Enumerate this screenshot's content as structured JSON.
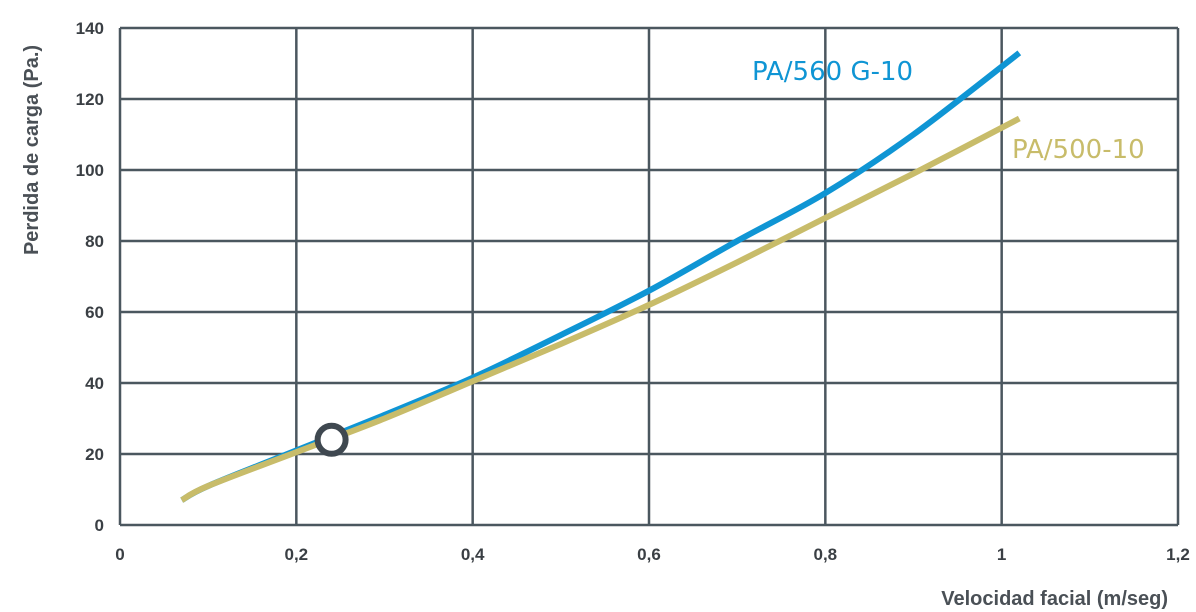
{
  "chart_data": {
    "type": "line",
    "title": "",
    "xlabel": "Velocidad facial (m/seg)",
    "ylabel": "Perdida de carga (Pa.)",
    "xlim": [
      0,
      1.2
    ],
    "ylim": [
      0,
      140
    ],
    "x_ticks": [
      0,
      0.2,
      0.4,
      0.6,
      0.8,
      1,
      1.2
    ],
    "x_tick_labels": [
      "0",
      "0,2",
      "0,4",
      "0,6",
      "0,8",
      "1",
      "1,2"
    ],
    "y_ticks": [
      0,
      20,
      40,
      60,
      80,
      100,
      120,
      140
    ],
    "y_tick_labels": [
      "0",
      "20",
      "40",
      "60",
      "80",
      "100",
      "120",
      "140"
    ],
    "grid": true,
    "series": [
      {
        "name": "PA/560 G-10",
        "color": "#0f95d4",
        "x": [
          0.07,
          0.1,
          0.2,
          0.3,
          0.4,
          0.5,
          0.6,
          0.7,
          0.8,
          0.9,
          1.02
        ],
        "y": [
          7,
          11,
          21,
          31,
          41.5,
          53.5,
          66,
          80,
          93.5,
          110,
          133
        ]
      },
      {
        "name": "PA/500-10",
        "color": "#c8bc6a",
        "x": [
          0.07,
          0.1,
          0.2,
          0.3,
          0.4,
          0.5,
          0.6,
          0.7,
          0.8,
          0.9,
          1.02
        ],
        "y": [
          7,
          11,
          20.5,
          30,
          40.5,
          51,
          62,
          74,
          86.5,
          99,
          114.5
        ]
      }
    ],
    "marker": {
      "x": 0.24,
      "y": 24,
      "style": "open-circle",
      "color": "#3f4850"
    }
  }
}
